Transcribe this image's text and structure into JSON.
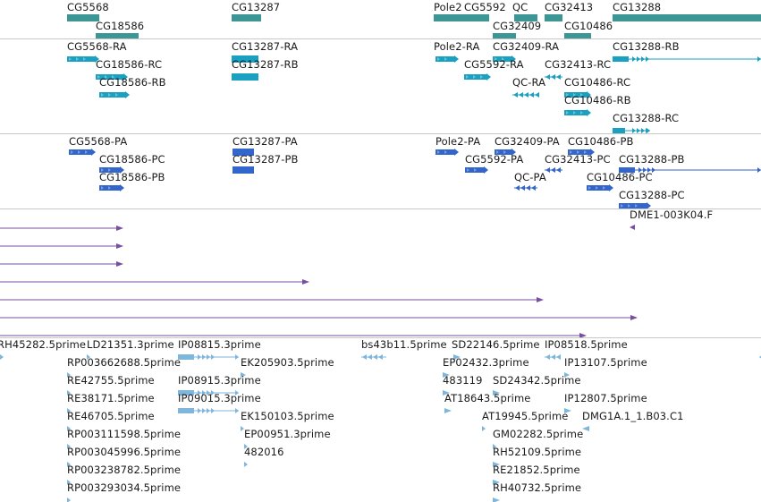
{
  "colors": {
    "gene": "#3d9696",
    "mrna": "#1aa0c0",
    "protein": "#3366cc",
    "clone": "#7a4fa0",
    "est": "#7fb6dc",
    "separator": "#c8c8c8"
  },
  "tracks": [
    {
      "id": "gene",
      "name": "gene-track",
      "features": [
        {
          "label": "CG5568",
          "shape": "bar"
        },
        {
          "label": "CG18586",
          "shape": "bar"
        },
        {
          "label": "CG13287",
          "shape": "bar"
        },
        {
          "label": "Pole2",
          "shape": "bar"
        },
        {
          "label": "CG5592",
          "shape": "bar"
        },
        {
          "label": "QC",
          "shape": "bar"
        },
        {
          "label": "CG32413",
          "shape": "bar"
        },
        {
          "label": "CG32409",
          "shape": "bar"
        },
        {
          "label": "CG10486",
          "shape": "bar"
        },
        {
          "label": "CG13288",
          "shape": "bar"
        }
      ]
    },
    {
      "id": "mrna",
      "name": "transcript-track",
      "features": [
        {
          "label": "CG5568-RA",
          "shape": "right"
        },
        {
          "label": "CG18586-RC",
          "shape": "right"
        },
        {
          "label": "CG18586-RB",
          "shape": "right"
        },
        {
          "label": "CG13287-RA",
          "shape": "bar"
        },
        {
          "label": "CG13287-RB",
          "shape": "bar"
        },
        {
          "label": "Pole2-RA",
          "shape": "right"
        },
        {
          "label": "CG32409-RA",
          "shape": "right"
        },
        {
          "label": "CG5592-RA",
          "shape": "right"
        },
        {
          "label": "CG32413-RC",
          "shape": "left"
        },
        {
          "label": "QC-RA",
          "shape": "left"
        },
        {
          "label": "CG10486-RC",
          "shape": "right"
        },
        {
          "label": "CG10486-RB",
          "shape": "right"
        },
        {
          "label": "CG13288-RB",
          "shape": "right"
        },
        {
          "label": "CG13288-RC",
          "shape": "right"
        }
      ]
    },
    {
      "id": "protein",
      "name": "protein-track",
      "features": [
        {
          "label": "CG5568-PA",
          "shape": "right"
        },
        {
          "label": "CG18586-PC",
          "shape": "right"
        },
        {
          "label": "CG18586-PB",
          "shape": "right"
        },
        {
          "label": "CG13287-PA",
          "shape": "bar"
        },
        {
          "label": "CG13287-PB",
          "shape": "bar"
        },
        {
          "label": "Pole2-PA",
          "shape": "right"
        },
        {
          "label": "CG32409-PA",
          "shape": "right"
        },
        {
          "label": "CG10486-PB",
          "shape": "right"
        },
        {
          "label": "CG5592-PA",
          "shape": "right"
        },
        {
          "label": "CG32413-PC",
          "shape": "left"
        },
        {
          "label": "CG13288-PB",
          "shape": "right"
        },
        {
          "label": "QC-PA",
          "shape": "left"
        },
        {
          "label": "CG10486-PC",
          "shape": "right"
        },
        {
          "label": "CG13288-PC",
          "shape": "right"
        }
      ]
    },
    {
      "id": "clone",
      "name": "clone-track",
      "features": [
        {
          "label": "DME1-003K04.F",
          "shape": "left"
        },
        {
          "label": "",
          "shape": "line-right"
        },
        {
          "label": "",
          "shape": "line-right"
        },
        {
          "label": "",
          "shape": "line-right"
        },
        {
          "label": "",
          "shape": "line-right"
        },
        {
          "label": "",
          "shape": "line-right"
        },
        {
          "label": "",
          "shape": "line-right"
        },
        {
          "label": "",
          "shape": "line-right"
        }
      ]
    },
    {
      "id": "est",
      "name": "est-track",
      "features": [
        {
          "label": "RH45282.5prime",
          "shape": "right"
        },
        {
          "label": "LD21351.3prime",
          "shape": "right"
        },
        {
          "label": "IP08815.3prime",
          "shape": "right"
        },
        {
          "label": "bs43b11.5prime",
          "shape": "left"
        },
        {
          "label": "SD22146.5prime",
          "shape": "right"
        },
        {
          "label": "IP08518.5prime",
          "shape": "left"
        },
        {
          "label": "",
          "shape": "left"
        },
        {
          "label": "RP003662688.5prime",
          "shape": "right"
        },
        {
          "label": "EK205903.5prime",
          "shape": "right"
        },
        {
          "label": "EP02432.3prime",
          "shape": "right"
        },
        {
          "label": "IP13107.5prime",
          "shape": "right"
        },
        {
          "label": "RE42755.5prime",
          "shape": "right"
        },
        {
          "label": "IP08915.3prime",
          "shape": "right"
        },
        {
          "label": "483119",
          "shape": "right"
        },
        {
          "label": "SD24342.5prime",
          "shape": "right"
        },
        {
          "label": "RE38171.5prime",
          "shape": "right"
        },
        {
          "label": "IP09015.3prime",
          "shape": "right"
        },
        {
          "label": "AT18643.5prime",
          "shape": "right"
        },
        {
          "label": "IP12807.5prime",
          "shape": "right"
        },
        {
          "label": "RE46705.5prime",
          "shape": "right"
        },
        {
          "label": "EK150103.5prime",
          "shape": "right"
        },
        {
          "label": "AT19945.5prime",
          "shape": "right"
        },
        {
          "label": "DMG1A.1_1.B03.C1",
          "shape": "left"
        },
        {
          "label": "RP003111598.5prime",
          "shape": "right"
        },
        {
          "label": "EP00951.3prime",
          "shape": "right"
        },
        {
          "label": "GM02282.5prime",
          "shape": "right"
        },
        {
          "label": "RP003045996.5prime",
          "shape": "right"
        },
        {
          "label": "482016",
          "shape": "right"
        },
        {
          "label": "RH52109.5prime",
          "shape": "right"
        },
        {
          "label": "RP003238782.5prime",
          "shape": "right"
        },
        {
          "label": "RE21852.5prime",
          "shape": "right"
        },
        {
          "label": "RP003293034.5prime",
          "shape": "right"
        },
        {
          "label": "RH40732.5prime",
          "shape": "right"
        }
      ]
    }
  ]
}
